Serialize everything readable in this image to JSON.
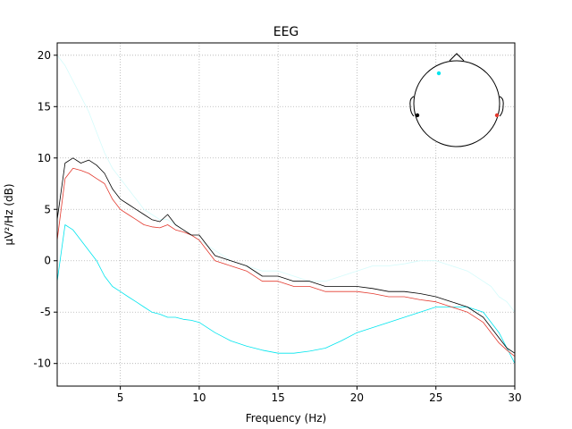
{
  "chart_data": {
    "type": "line",
    "title": "EEG",
    "xlabel": "Frequency (Hz)",
    "ylabel": "µV²/Hz (dB)",
    "xlim": [
      1,
      30
    ],
    "ylim": [
      -12.2,
      21.2
    ],
    "xticks": [
      5,
      10,
      15,
      20,
      25,
      30
    ],
    "yticks": [
      -10,
      -5,
      0,
      5,
      10,
      15,
      20
    ],
    "grid": true,
    "grid_style": "dotted",
    "inset": "sensor-head-map",
    "series": [
      {
        "color": "#000000",
        "x": [
          1,
          1.5,
          2,
          2.5,
          3,
          3.5,
          4,
          4.5,
          5,
          5.5,
          6,
          6.5,
          7,
          7.5,
          8,
          8.5,
          9,
          9.5,
          10,
          11,
          12,
          13,
          14,
          15,
          16,
          17,
          18,
          19,
          20,
          21,
          22,
          23,
          24,
          25,
          26,
          27,
          28,
          28.5,
          29,
          29.5,
          30
        ],
        "y": [
          4,
          9.5,
          10,
          9.5,
          9.8,
          9.3,
          8.5,
          7,
          6,
          5.5,
          5,
          4.5,
          4,
          3.8,
          4.5,
          3.5,
          3,
          2.5,
          2.5,
          0.5,
          0,
          -0.5,
          -1.5,
          -1.5,
          -2,
          -2,
          -2.5,
          -2.5,
          -2.5,
          -2.7,
          -3,
          -3,
          -3.2,
          -3.5,
          -4,
          -4.5,
          -5.5,
          -6.5,
          -7.5,
          -8.5,
          -9
        ]
      },
      {
        "color": "#e33a2f",
        "x": [
          1,
          1.5,
          2,
          2.5,
          3,
          3.5,
          4,
          4.5,
          5,
          5.5,
          6,
          6.5,
          7,
          7.5,
          8,
          8.5,
          9,
          9.5,
          10,
          11,
          12,
          13,
          14,
          15,
          16,
          17,
          18,
          19,
          20,
          21,
          22,
          23,
          24,
          25,
          26,
          27,
          28,
          28.5,
          29,
          29.5,
          30
        ],
        "y": [
          2,
          8,
          9,
          8.8,
          8.5,
          8,
          7.5,
          6,
          5,
          4.5,
          4,
          3.5,
          3.3,
          3.2,
          3.5,
          3,
          2.8,
          2.5,
          2,
          0,
          -0.5,
          -1,
          -2,
          -2,
          -2.5,
          -2.5,
          -3,
          -3,
          -3,
          -3.2,
          -3.5,
          -3.5,
          -3.8,
          -4,
          -4.5,
          -5,
          -6,
          -7,
          -8,
          -8.7,
          -9.3
        ]
      },
      {
        "color": "#00e5ee",
        "x": [
          1,
          1.5,
          2,
          2.5,
          3,
          3.5,
          4,
          4.5,
          5,
          5.5,
          6,
          6.5,
          7,
          7.5,
          8,
          8.5,
          9,
          9.5,
          10,
          11,
          12,
          13,
          14,
          15,
          16,
          17,
          18,
          19,
          20,
          21,
          22,
          23,
          24,
          25,
          26,
          27,
          28,
          28.5,
          29,
          29.5,
          30
        ],
        "y": [
          -2,
          3.5,
          3,
          2,
          1,
          0,
          -1.5,
          -2.5,
          -3,
          -3.5,
          -4,
          -4.5,
          -5,
          -5.2,
          -5.5,
          -5.5,
          -5.7,
          -5.8,
          -6,
          -7,
          -7.8,
          -8.3,
          -8.7,
          -9,
          -9,
          -8.8,
          -8.5,
          -7.8,
          -7,
          -6.5,
          -6,
          -5.5,
          -5,
          -4.5,
          -4.5,
          -4.5,
          -5,
          -6,
          -7,
          -8.5,
          -10
        ]
      },
      {
        "color": "#d5fbfb",
        "x": [
          1,
          1.5,
          2,
          2.5,
          3,
          3.5,
          4,
          4.5,
          5,
          5.5,
          6,
          6.5,
          7,
          7.5,
          8,
          8.5,
          9,
          9.5,
          10,
          11,
          12,
          13,
          14,
          15,
          16,
          17,
          18,
          19,
          20,
          21,
          22,
          23,
          24,
          25,
          26,
          27,
          28,
          28.5,
          29,
          29.5,
          30
        ],
        "y": [
          20,
          19,
          17.5,
          16,
          14.5,
          12.5,
          10.5,
          9,
          8,
          7,
          6,
          5,
          4.5,
          4,
          4,
          3.5,
          3,
          2.5,
          2,
          1,
          0,
          -0.5,
          -1,
          -1,
          -1.5,
          -2,
          -2,
          -1.5,
          -1,
          -0.5,
          -0.5,
          -0.3,
          0,
          0,
          -0.5,
          -1,
          -2,
          -2.5,
          -3.5,
          -4,
          -5
        ]
      }
    ]
  }
}
